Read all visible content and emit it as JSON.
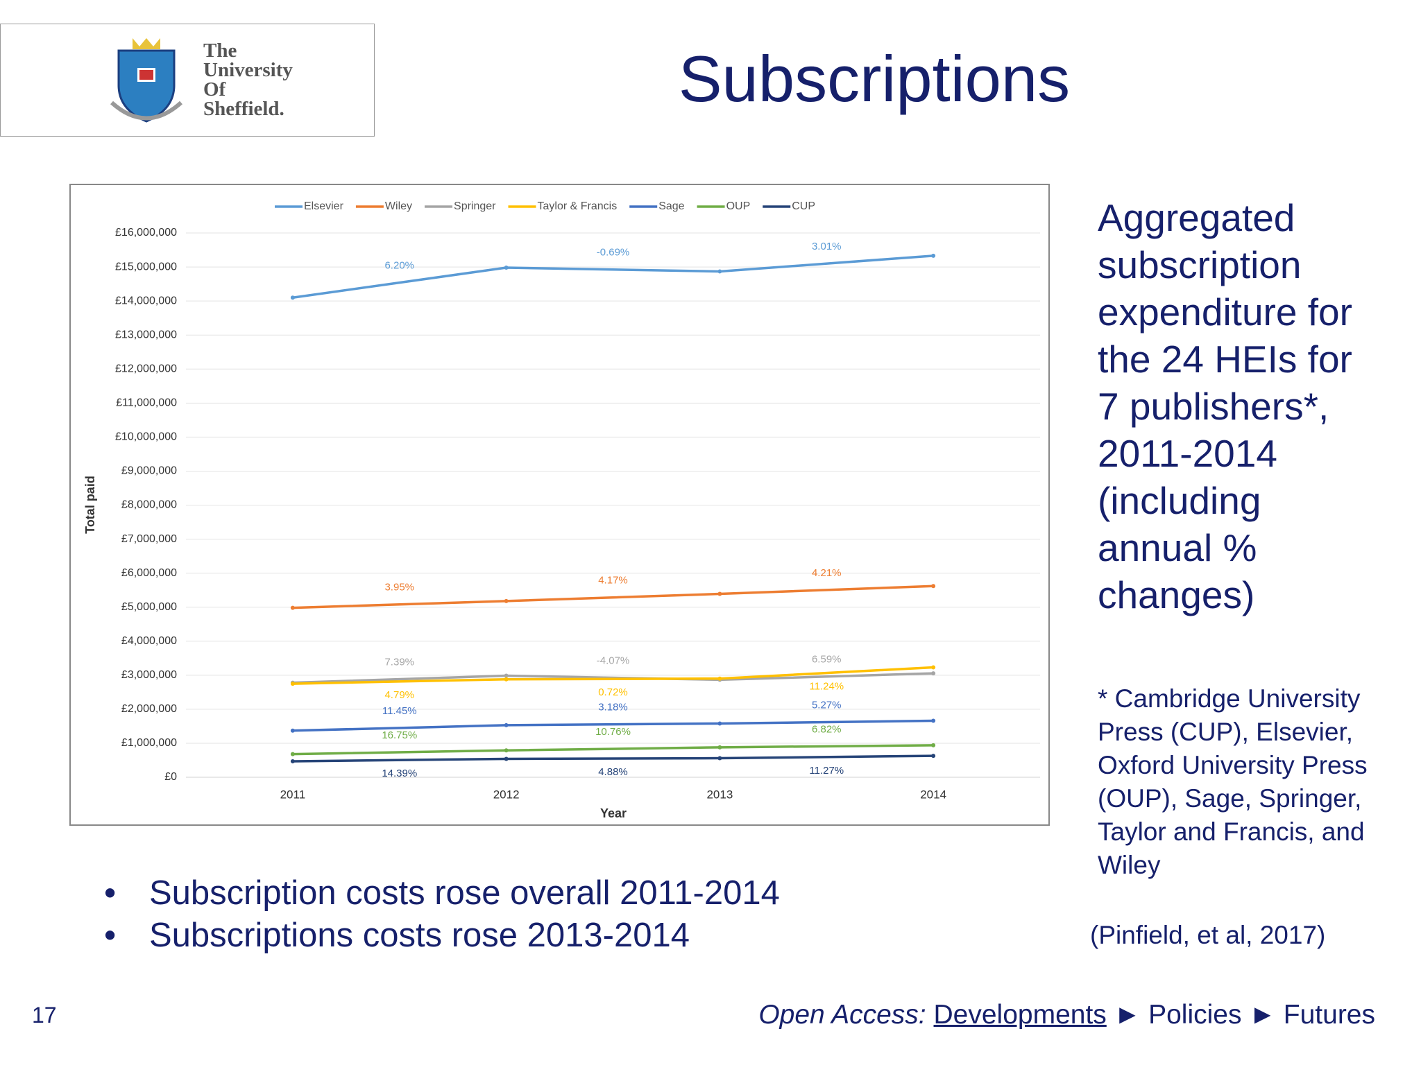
{
  "logo": {
    "lines": [
      "The",
      "University",
      "Of",
      "Sheffield."
    ]
  },
  "title": "Subscriptions",
  "chart_data": {
    "type": "line",
    "y_label": "Total paid",
    "x_label": "Year",
    "categories": [
      "2011",
      "2012",
      "2013",
      "2014"
    ],
    "ylim": [
      0,
      16000000
    ],
    "yticks": [
      {
        "value": 0,
        "label": "£0"
      },
      {
        "value": 1000000,
        "label": "£1,000,000"
      },
      {
        "value": 2000000,
        "label": "£2,000,000"
      },
      {
        "value": 3000000,
        "label": "£3,000,000"
      },
      {
        "value": 4000000,
        "label": "£4,000,000"
      },
      {
        "value": 5000000,
        "label": "£5,000,000"
      },
      {
        "value": 6000000,
        "label": "£6,000,000"
      },
      {
        "value": 7000000,
        "label": "£7,000,000"
      },
      {
        "value": 8000000,
        "label": "£8,000,000"
      },
      {
        "value": 9000000,
        "label": "£9,000,000"
      },
      {
        "value": 10000000,
        "label": "£10,000,000"
      },
      {
        "value": 11000000,
        "label": "£11,000,000"
      },
      {
        "value": 12000000,
        "label": "£12,000,000"
      },
      {
        "value": 13000000,
        "label": "£13,000,000"
      },
      {
        "value": 14000000,
        "label": "£14,000,000"
      },
      {
        "value": 15000000,
        "label": "£15,000,000"
      },
      {
        "value": 16000000,
        "label": "£16,000,000"
      }
    ],
    "grid": true,
    "legend": "top",
    "series": [
      {
        "name": "Elsevier",
        "color": "#5b9bd5",
        "values": [
          14100000,
          14980000,
          14870000,
          15330000
        ],
        "change_labels": [
          "6.20%",
          "-0.69%",
          "3.01%"
        ],
        "label_position": "above"
      },
      {
        "name": "Wiley",
        "color": "#ed7d31",
        "values": [
          4980000,
          5180000,
          5390000,
          5620000
        ],
        "change_labels": [
          "3.95%",
          "4.17%",
          "4.21%"
        ],
        "label_position": "above"
      },
      {
        "name": "Springer",
        "color": "#a5a5a5",
        "values": [
          2780000,
          2985000,
          2865000,
          3055000
        ],
        "change_labels": [
          "7.39%",
          "-4.07%",
          "6.59%"
        ],
        "label_position": "above"
      },
      {
        "name": "Taylor & Francis",
        "color": "#ffc000",
        "values": [
          2750000,
          2880000,
          2900000,
          3230000
        ],
        "change_labels": [
          "4.79%",
          "0.72%",
          "11.24%"
        ],
        "label_position": "below"
      },
      {
        "name": "Sage",
        "color": "#4472c4",
        "values": [
          1370000,
          1530000,
          1580000,
          1660000
        ],
        "change_labels": [
          "11.45%",
          "3.18%",
          "5.27%"
        ],
        "label_position": "above"
      },
      {
        "name": "OUP",
        "color": "#70ad47",
        "values": [
          680000,
          790000,
          880000,
          940000
        ],
        "change_labels": [
          "16.75%",
          "10.76%",
          "6.82%"
        ],
        "label_position": "above"
      },
      {
        "name": "CUP",
        "color": "#264478",
        "values": [
          470000,
          540000,
          560000,
          630000
        ],
        "change_labels": [
          "14.39%",
          "4.88%",
          "11.27%"
        ],
        "label_position": "below"
      }
    ]
  },
  "side_text": "Aggregated subscription expenditure for the 24 HEIs for 7 publishers*, 2011-2014 (including annual % changes)",
  "footnote": "* Cambridge University Press (CUP), Elsevier, Oxford University Press (OUP), Sage, Springer, Taylor and Francis, and Wiley",
  "citation": "(Pinfield, et al, 2017)",
  "bullets": [
    "Subscription costs rose overall 2011-2014",
    "Subscriptions costs rose 2013-2014"
  ],
  "footer": {
    "page": "17",
    "label": "Open Access:",
    "separator": "►",
    "items": [
      "Developments",
      "Policies",
      "Futures"
    ]
  }
}
